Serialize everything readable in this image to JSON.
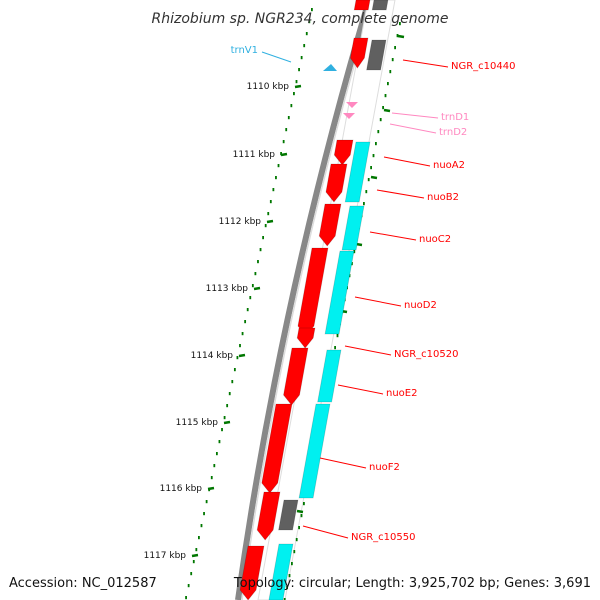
{
  "title": "Rhizobium sp. NGR234, complete genome",
  "footer": {
    "accession": "Accession: NC_012587",
    "topology": "Topology: circular; Length: 3,925,702 bp; Genes: 3,691"
  },
  "colors": {
    "forward_gene": "#ff0000",
    "cds_feature": "#00f0f0",
    "pseudo_feature": "#606060",
    "trna_forward": "#30b0e0",
    "trna_reverse": "#ff88c0",
    "ticks": "#007700",
    "backbone": "#888888"
  },
  "ruler": [
    {
      "label": "1110 kbp"
    },
    {
      "label": "1111 kbp"
    },
    {
      "label": "1112 kbp"
    },
    {
      "label": "1113 kbp"
    },
    {
      "label": "1114 kbp"
    },
    {
      "label": "1115 kbp"
    },
    {
      "label": "1116 kbp"
    },
    {
      "label": "1117 kbp"
    }
  ],
  "genes": [
    {
      "label": "trnV1",
      "type": "tRNA-forward"
    },
    {
      "label": "NGR_c10440",
      "type": "gene"
    },
    {
      "label": "trnD1",
      "type": "tRNA-reverse"
    },
    {
      "label": "trnD2",
      "type": "tRNA-reverse"
    },
    {
      "label": "nuoA2",
      "type": "gene"
    },
    {
      "label": "nuoB2",
      "type": "gene"
    },
    {
      "label": "nuoC2",
      "type": "gene"
    },
    {
      "label": "nuoD2",
      "type": "gene"
    },
    {
      "label": "NGR_c10520",
      "type": "gene"
    },
    {
      "label": "nuoE2",
      "type": "gene"
    },
    {
      "label": "nuoF2",
      "type": "gene"
    },
    {
      "label": "NGR_c10550",
      "type": "gene"
    }
  ]
}
